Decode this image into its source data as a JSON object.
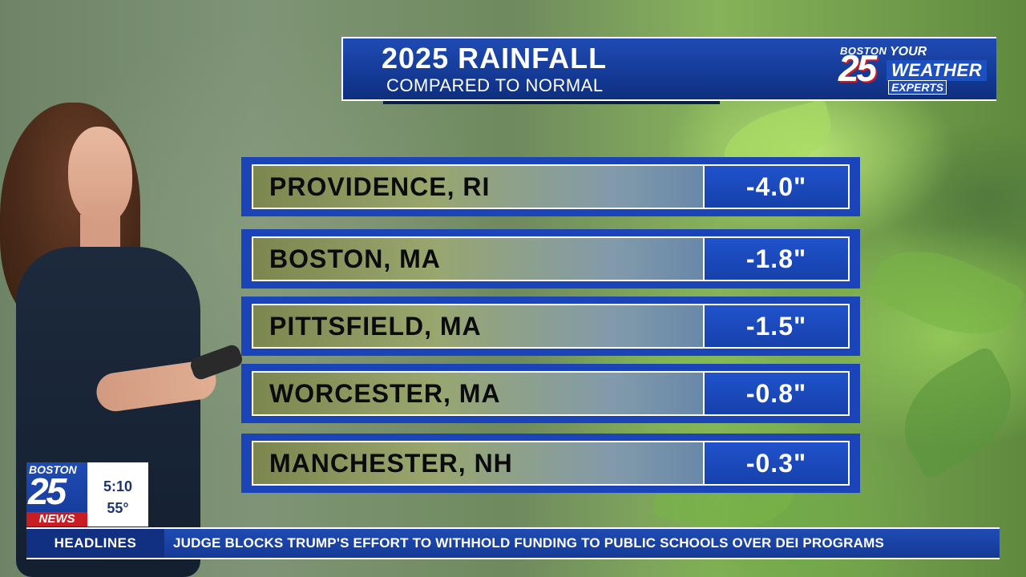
{
  "header": {
    "title": "2025 RAINFALL",
    "subtitle": "COMPARED TO NORMAL"
  },
  "brand": {
    "city": "BOSTON",
    "number": "25",
    "line1": "YOUR",
    "line2": "WEATHER",
    "line3": "EXPERTS"
  },
  "rows": [
    {
      "city": "PROVIDENCE, RI",
      "value": "-4.0\""
    },
    {
      "city": "BOSTON, MA",
      "value": "-1.8\""
    },
    {
      "city": "PITTSFIELD, MA",
      "value": "-1.5\""
    },
    {
      "city": "WORCESTER, MA",
      "value": "-0.8\""
    },
    {
      "city": "MANCHESTER, NH",
      "value": "-0.3\""
    }
  ],
  "bug": {
    "city": "BOSTON",
    "number": "25",
    "news": "NEWS",
    "time": "5:10",
    "temp": "55°"
  },
  "ticker": {
    "label": "HEADLINES",
    "text": "JUDGE BLOCKS TRUMP'S EFFORT TO WITHHOLD FUNDING TO PUBLIC SCHOOLS OVER DEI PROGRAMS"
  },
  "colors": {
    "primary_blue": "#1a44b8",
    "accent_red": "#c81d25"
  }
}
